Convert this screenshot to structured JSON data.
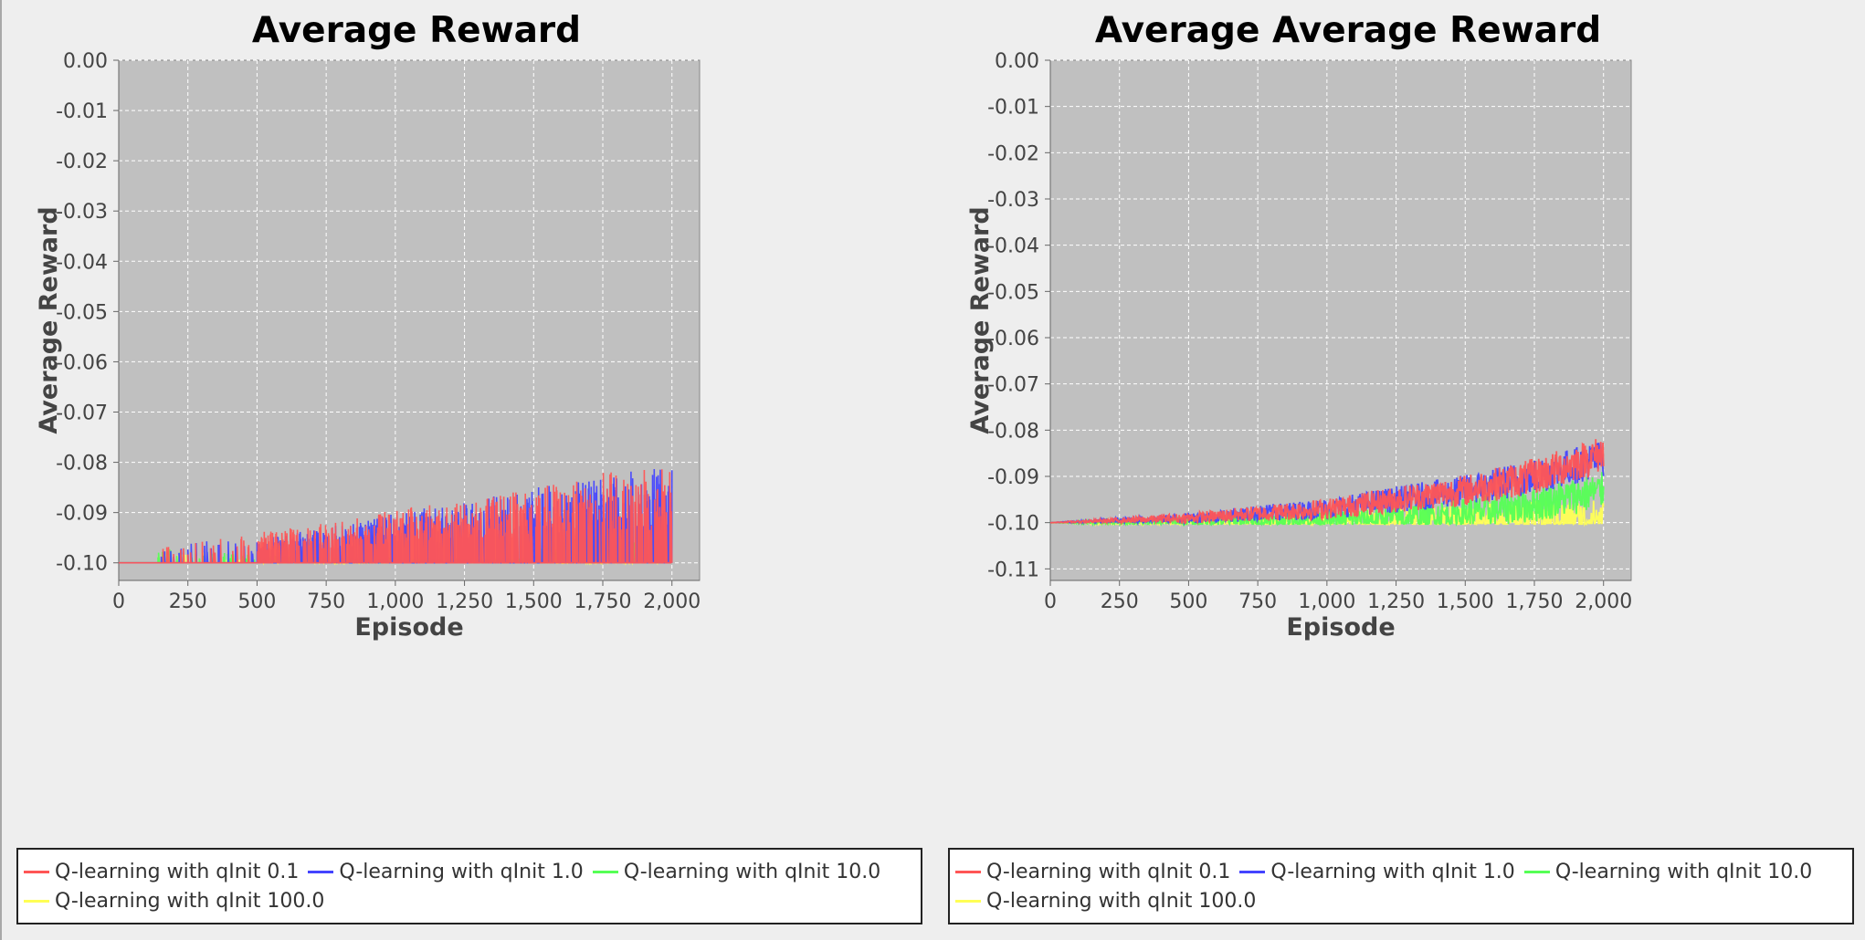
{
  "chart_data": [
    {
      "type": "line",
      "title": "Average Reward",
      "xlabel": "Episode",
      "ylabel": "Average Reward",
      "xlim": [
        0,
        2100
      ],
      "ylim": [
        -0.1035,
        0.0
      ],
      "xticks": [
        0,
        250,
        500,
        750,
        1000,
        1250,
        1500,
        1750,
        2000
      ],
      "xtick_labels": [
        "0",
        "250",
        "500",
        "750",
        "1,000",
        "1,250",
        "1,500",
        "1,750",
        "2,000"
      ],
      "yticks": [
        0.0,
        -0.01,
        -0.02,
        -0.03,
        -0.04,
        -0.05,
        -0.06,
        -0.07,
        -0.08,
        -0.09,
        -0.1
      ],
      "ytick_labels": [
        "0.00",
        "-0.01",
        "-0.02",
        "-0.03",
        "-0.04",
        "-0.05",
        "-0.06",
        "-0.07",
        "-0.08",
        "-0.09",
        "-0.10"
      ],
      "grid": true,
      "background": "#c0c0c0",
      "legend_position": "bottom",
      "series": [
        {
          "name": "Q-learning with qInit 0.1",
          "color": "#ff5555",
          "x": [
            0,
            160,
            250,
            500,
            750,
            1000,
            1250,
            1500,
            1750,
            2000
          ],
          "y": [
            -0.1,
            -0.097,
            -0.096,
            -0.094,
            -0.092,
            -0.089,
            -0.088,
            -0.085,
            -0.082,
            -0.081
          ]
        },
        {
          "name": "Q-learning with qInit 1.0",
          "color": "#4444ff",
          "x": [
            0,
            250,
            500,
            750,
            1000,
            1250,
            1500,
            1750,
            2000
          ],
          "y": [
            -0.1,
            -0.096,
            -0.095,
            -0.093,
            -0.09,
            -0.088,
            -0.085,
            -0.083,
            -0.08
          ]
        },
        {
          "name": "Q-learning with qInit 10.0",
          "color": "#55ff55",
          "x": [
            0,
            200,
            500,
            1000,
            1500,
            1570,
            2000
          ],
          "y": [
            -0.1,
            -0.097,
            -0.0985,
            -0.099,
            -0.099,
            -0.094,
            -0.094
          ]
        },
        {
          "name": "Q-learning with qInit 100.0",
          "color": "#ffff55",
          "x": [
            0,
            250,
            500,
            1000,
            1500,
            2000
          ],
          "y": [
            -0.1,
            -0.097,
            -0.0995,
            -0.1,
            -0.1,
            -0.0995
          ]
        }
      ]
    },
    {
      "type": "line",
      "title": "Average Average Reward",
      "xlabel": "Episode",
      "ylabel": "Average Reward",
      "xlim": [
        0,
        2100
      ],
      "ylim": [
        -0.1125,
        0.0
      ],
      "xticks": [
        0,
        250,
        500,
        750,
        1000,
        1250,
        1500,
        1750,
        2000
      ],
      "xtick_labels": [
        "0",
        "250",
        "500",
        "750",
        "1,000",
        "1,250",
        "1,500",
        "1,750",
        "2,000"
      ],
      "yticks": [
        0.0,
        -0.01,
        -0.02,
        -0.03,
        -0.04,
        -0.05,
        -0.06,
        -0.07,
        -0.08,
        -0.09,
        -0.1,
        -0.11
      ],
      "ytick_labels": [
        "0.00",
        "-0.01",
        "-0.02",
        "-0.03",
        "-0.04",
        "-0.05",
        "-0.06",
        "-0.07",
        "-0.08",
        "-0.09",
        "-0.10",
        "-0.11"
      ],
      "grid": true,
      "background": "#c0c0c0",
      "legend_position": "bottom",
      "series": [
        {
          "name": "Q-learning with qInit 0.1",
          "color": "#ff5555",
          "x": [
            0,
            250,
            500,
            750,
            1000,
            1250,
            1500,
            1750,
            2000
          ],
          "y": [
            -0.1,
            -0.0995,
            -0.099,
            -0.098,
            -0.097,
            -0.095,
            -0.093,
            -0.09,
            -0.085
          ]
        },
        {
          "name": "Q-learning with qInit 1.0",
          "color": "#4444ff",
          "x": [
            0,
            250,
            500,
            750,
            1000,
            1250,
            1500,
            1750,
            2000
          ],
          "y": [
            -0.1,
            -0.0995,
            -0.099,
            -0.098,
            -0.097,
            -0.095,
            -0.093,
            -0.09,
            -0.086
          ]
        },
        {
          "name": "Q-learning with qInit 10.0",
          "color": "#55ff55",
          "x": [
            0,
            500,
            1000,
            1250,
            1500,
            1750,
            2000
          ],
          "y": [
            -0.1,
            -0.0998,
            -0.0995,
            -0.099,
            -0.098,
            -0.096,
            -0.093
          ]
        },
        {
          "name": "Q-learning with qInit 100.0",
          "color": "#ffff55",
          "x": [
            0,
            500,
            1000,
            1500,
            2000
          ],
          "y": [
            -0.1,
            -0.1,
            -0.0998,
            -0.0995,
            -0.099
          ]
        }
      ]
    }
  ]
}
